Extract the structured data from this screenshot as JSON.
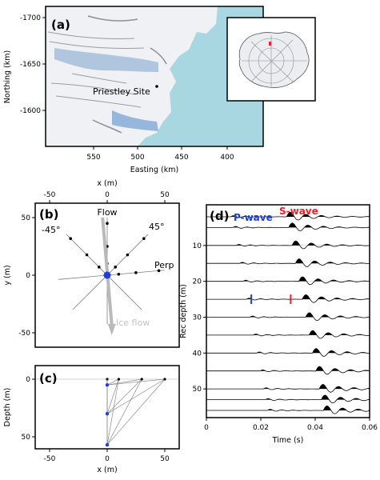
{
  "colors": {
    "sea": "#a8d7e1",
    "ice": "#f2f3f6",
    "flow_arrow": "#b9b9b9",
    "ice_flow_text": "#c2c2c2",
    "p_wave": "#1f3fd6",
    "s_wave": "#e8202a",
    "source_dot": "#1f3fd6",
    "panel_border": "#000000"
  },
  "panel_a": {
    "label": "(a)",
    "site_label": "Priestley Site",
    "xlabel": "Easting (km)",
    "ylabel": "Northing (km)",
    "xticks": [
      "550",
      "500",
      "450",
      "400"
    ],
    "yticks": [
      "-1700",
      "-1650",
      "-1600"
    ],
    "inset_icon": "antarctica-map-icon"
  },
  "panel_b": {
    "label": "(b)",
    "xlabel_top": "x (m)",
    "ylabel": "y (m)",
    "xticks": [
      "-50",
      "0",
      "50"
    ],
    "yticks": [
      "50",
      "0",
      "-50"
    ],
    "line_labels": [
      "Flow",
      "45°",
      "-45°",
      "Perp"
    ],
    "ice_flow_label": "Ice flow"
  },
  "panel_c": {
    "label": "(c)",
    "xlabel": "x (m)",
    "ylabel": "Depth (m)",
    "xticks": [
      "-50",
      "0",
      "50"
    ],
    "yticks": [
      "0",
      "50"
    ]
  },
  "panel_d": {
    "label": "(d)",
    "p_wave_label": "P-wave",
    "s_wave_label": "S-wave",
    "xlabel": "Time (s)",
    "ylabel": "Rec depth (m)",
    "xticks": [
      "0",
      "0.02",
      "0.04",
      "0.06"
    ],
    "yticks": [
      "10",
      "20",
      "30",
      "40",
      "50"
    ]
  },
  "chart_data": [
    {
      "type": "scatter",
      "panel": "b",
      "xlabel": "x (m)",
      "ylabel": "y (m)",
      "xlim": [
        -60,
        60
      ],
      "ylim": [
        -60,
        60
      ],
      "source": {
        "x": 0,
        "y": 0
      },
      "lines": [
        {
          "name": "Flow",
          "angle_deg": 90,
          "r_max": 50
        },
        {
          "name": "45°",
          "angle_deg": 45,
          "r_max": 50
        },
        {
          "name": "-45°",
          "angle_deg": 135,
          "r_max": 50
        },
        {
          "name": "Perp",
          "angle_deg": 5,
          "r_max": 50
        }
      ],
      "receiver_radii": [
        10,
        25,
        45
      ],
      "ice_flow_arrow": {
        "from": [
          -4,
          50
        ],
        "to": [
          4,
          -52
        ]
      }
    },
    {
      "type": "scatter",
      "panel": "c",
      "xlabel": "x (m)",
      "ylabel": "Depth (m)",
      "xlim": [
        -60,
        60
      ],
      "ylim": [
        0,
        60
      ],
      "surface_sources_x": [
        0,
        10,
        30,
        50
      ],
      "receiver_depths": [
        5,
        30,
        57
      ]
    },
    {
      "type": "line",
      "panel": "d",
      "xlabel": "Time (s)",
      "ylabel": "Rec depth (m)",
      "xlim": [
        0,
        0.06
      ],
      "ylim": [
        0,
        58
      ],
      "trace_depths": [
        2,
        5,
        10,
        15,
        20,
        25,
        30,
        35,
        40,
        45,
        50,
        53,
        56
      ],
      "p_pick_time": 0.0165,
      "s_pick_time": 0.031,
      "pick_depth": 25
    }
  ]
}
